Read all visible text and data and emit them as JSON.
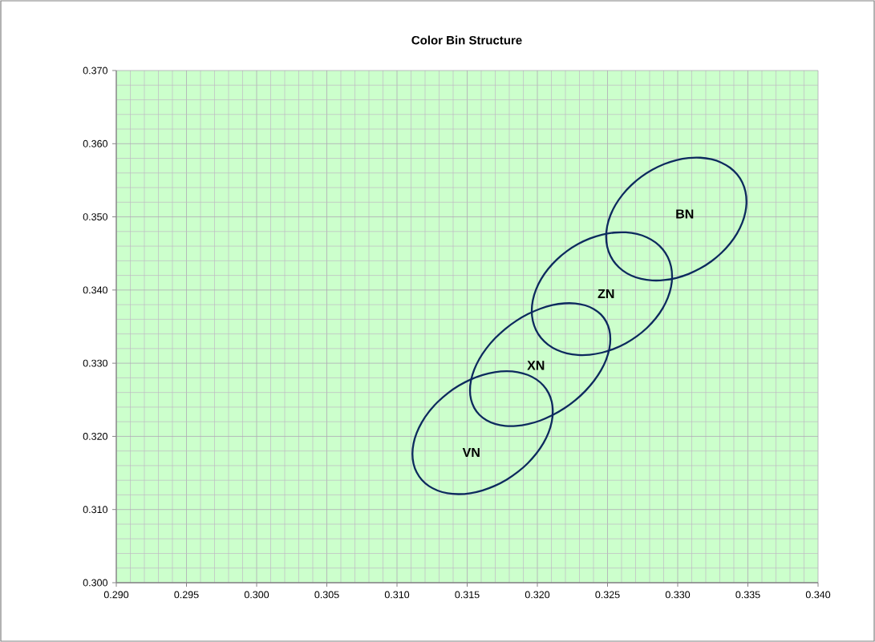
{
  "chart_data": {
    "type": "line",
    "title": "Color Bin Structure",
    "xlim": [
      0.29,
      0.34
    ],
    "ylim": [
      0.3,
      0.37
    ],
    "xticks": [
      {
        "value": 0.29,
        "label": "0.290"
      },
      {
        "value": 0.295,
        "label": "0.295"
      },
      {
        "value": 0.3,
        "label": "0.300"
      },
      {
        "value": 0.305,
        "label": "0.305"
      },
      {
        "value": 0.31,
        "label": "0.310"
      },
      {
        "value": 0.315,
        "label": "0.315"
      },
      {
        "value": 0.32,
        "label": "0.320"
      },
      {
        "value": 0.325,
        "label": "0.325"
      },
      {
        "value": 0.33,
        "label": "0.330"
      },
      {
        "value": 0.335,
        "label": "0.335"
      },
      {
        "value": 0.34,
        "label": "0.340"
      }
    ],
    "yticks": [
      {
        "value": 0.3,
        "label": "0.300"
      },
      {
        "value": 0.31,
        "label": "0.310"
      },
      {
        "value": 0.32,
        "label": "0.320"
      },
      {
        "value": 0.33,
        "label": "0.330"
      },
      {
        "value": 0.34,
        "label": "0.340"
      },
      {
        "value": 0.35,
        "label": "0.350"
      },
      {
        "value": 0.36,
        "label": "0.360"
      },
      {
        "value": 0.37,
        "label": "0.370"
      }
    ],
    "grid": true,
    "annotations": [
      "VN",
      "XN",
      "ZN",
      "BN"
    ]
  }
}
